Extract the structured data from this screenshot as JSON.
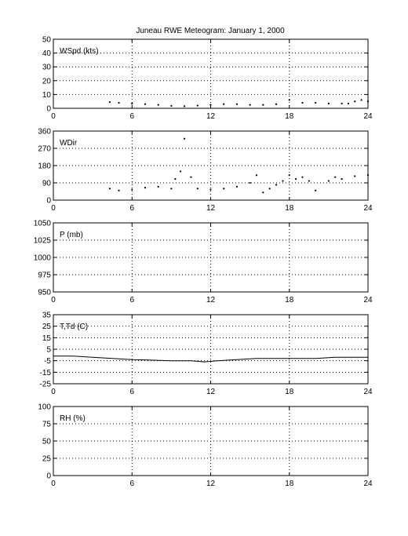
{
  "figure": {
    "title": "Juneau RWE Meteogram:    January   1, 2000"
  },
  "chart_data": [
    {
      "id": "wspd",
      "type": "scatter",
      "label": "WSpd (kts)",
      "xlim": [
        0,
        24
      ],
      "ylim": [
        0,
        50
      ],
      "xticks": [
        "0",
        "6",
        "12",
        "18",
        "24"
      ],
      "yticks": [
        "0",
        "10",
        "20",
        "30",
        "40",
        "50"
      ],
      "grid": true,
      "series": [
        {
          "x": [
            4.3,
            5,
            6,
            7,
            8,
            9,
            10,
            11,
            12,
            13,
            14,
            15,
            16,
            17,
            18,
            19,
            20,
            21,
            22,
            22.5,
            23,
            23.5,
            24
          ],
          "y": [
            4.5,
            4,
            3.5,
            3,
            2.5,
            1.8,
            1.5,
            2,
            2.5,
            3,
            3,
            2.5,
            2.5,
            3,
            6,
            4,
            4,
            3.5,
            3.5,
            3.5,
            5,
            6,
            5
          ]
        }
      ]
    },
    {
      "id": "wdir",
      "type": "scatter",
      "label": "WDir",
      "xlim": [
        0,
        24
      ],
      "ylim": [
        0,
        360
      ],
      "xticks": [
        "0",
        "6",
        "12",
        "18",
        "24"
      ],
      "yticks": [
        "0",
        "90",
        "180",
        "270",
        "360"
      ],
      "grid": true,
      "series": [
        {
          "x": [
            4.3,
            5,
            6,
            7,
            8,
            9,
            9.3,
            9.7,
            10,
            10.5,
            11,
            12,
            13,
            14,
            15,
            15.5,
            16,
            16.5,
            17,
            17.5,
            18,
            18.5,
            19,
            19.5,
            20,
            21,
            21.5,
            22,
            23,
            24
          ],
          "y": [
            60,
            50,
            55,
            65,
            70,
            60,
            110,
            150,
            320,
            120,
            60,
            55,
            60,
            70,
            90,
            130,
            40,
            60,
            80,
            100,
            130,
            110,
            120,
            100,
            50,
            100,
            120,
            110,
            125,
            130
          ]
        }
      ]
    },
    {
      "id": "pressure",
      "type": "line",
      "label": "P (mb)",
      "xlim": [
        0,
        24
      ],
      "ylim": [
        950,
        1050
      ],
      "xticks": [
        "0",
        "6",
        "12",
        "18",
        "24"
      ],
      "yticks": [
        "950",
        "975",
        "1000",
        "1025",
        "1050"
      ],
      "grid": true,
      "series": []
    },
    {
      "id": "temp",
      "type": "line",
      "label": "T,Td (C)",
      "xlim": [
        0,
        24
      ],
      "ylim": [
        -25,
        35
      ],
      "xticks": [
        "0",
        "6",
        "12",
        "18",
        "24"
      ],
      "yticks": [
        "-25",
        "-15",
        "-5",
        "5",
        "15",
        "25",
        "35"
      ],
      "grid": true,
      "series": [
        {
          "x": [
            0,
            1.5,
            3,
            4.5,
            6,
            7.5,
            9,
            10.5,
            11.5,
            12.5,
            14,
            15.5,
            17,
            18.5,
            20,
            21.5,
            23,
            24
          ],
          "y": [
            -1,
            -1,
            -2,
            -3,
            -4,
            -4.5,
            -5,
            -5,
            -6,
            -5,
            -4,
            -3,
            -3,
            -3,
            -3,
            -2,
            -2,
            -2
          ]
        }
      ]
    },
    {
      "id": "rh",
      "type": "line",
      "label": "RH (%)",
      "xlim": [
        0,
        24
      ],
      "ylim": [
        0,
        100
      ],
      "xticks": [
        "0",
        "6",
        "12",
        "18",
        "24"
      ],
      "yticks": [
        "0",
        "25",
        "50",
        "75",
        "100"
      ],
      "grid": true,
      "series": []
    }
  ]
}
